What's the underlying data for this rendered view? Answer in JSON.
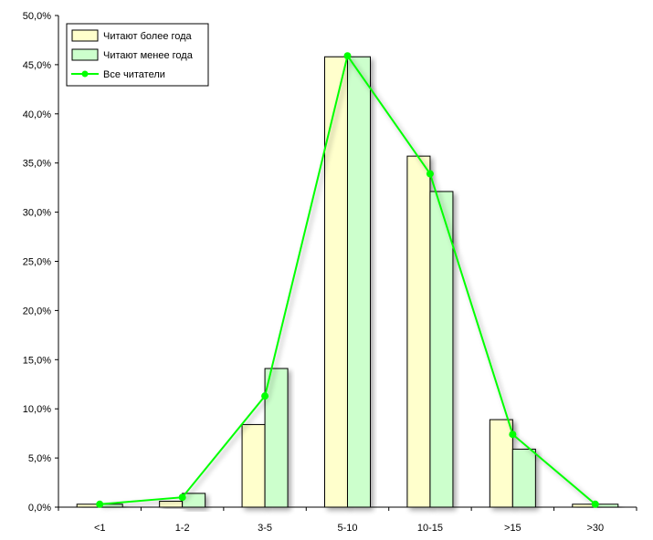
{
  "chart_data": {
    "type": "bar",
    "categories": [
      "<1",
      "1-2",
      "3-5",
      "5-10",
      "10-15",
      ">15",
      ">30"
    ],
    "series": [
      {
        "name": "Читают более года",
        "kind": "bar",
        "color": "#ffffcc",
        "values": [
          0.3,
          0.6,
          8.4,
          45.8,
          35.7,
          8.9,
          0.3
        ]
      },
      {
        "name": "Читают менее года",
        "kind": "bar",
        "color": "#ccffcc",
        "values": [
          0.3,
          1.4,
          14.1,
          45.8,
          32.1,
          5.9,
          0.3
        ]
      },
      {
        "name": "Все читатели",
        "kind": "line",
        "color": "#00ff00",
        "values": [
          0.3,
          1.0,
          11.3,
          45.9,
          33.9,
          7.4,
          0.3
        ]
      }
    ],
    "title": "",
    "xlabel": "",
    "ylabel": "",
    "ylim": [
      0,
      50
    ],
    "yticks": [
      "0,0%",
      "5,0%",
      "10,0%",
      "15,0%",
      "20,0%",
      "25,0%",
      "30,0%",
      "35,0%",
      "40,0%",
      "45,0%",
      "50,0%"
    ],
    "grid": false,
    "legend_position": "top-left"
  }
}
